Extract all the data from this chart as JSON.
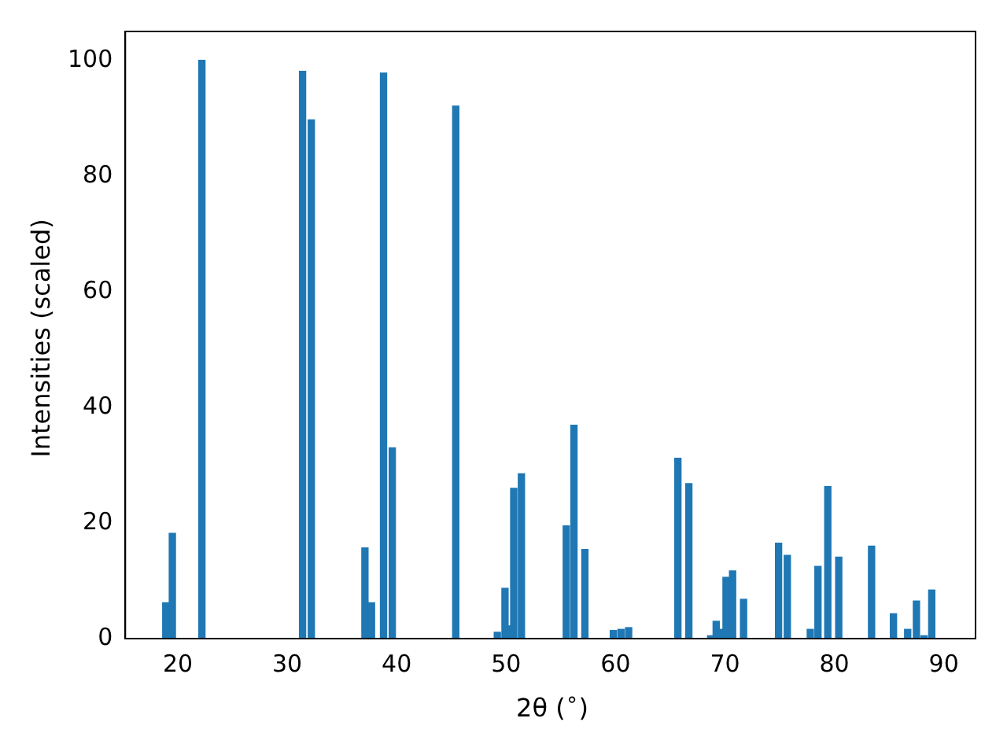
{
  "chart_data": {
    "type": "bar",
    "xlabel": "2θ ($^{∘}$)",
    "ylabel": "Intensities (scaled)",
    "x": [
      18.9,
      19.5,
      22.2,
      31.4,
      32.2,
      37.1,
      37.7,
      38.8,
      39.6,
      45.4,
      49.2,
      49.9,
      50.3,
      50.7,
      51.4,
      55.5,
      56.2,
      57.2,
      59.8,
      60.5,
      61.2,
      65.7,
      66.7,
      68.7,
      69.2,
      69.7,
      70.1,
      70.7,
      71.7,
      74.9,
      75.7,
      77.8,
      78.5,
      79.4,
      80.4,
      83.4,
      85.4,
      86.7,
      87.5,
      88.2,
      88.9
    ],
    "values": [
      6.2,
      18.2,
      100,
      98.1,
      89.7,
      15.7,
      6.2,
      97.8,
      33.0,
      92.1,
      1.1,
      8.7,
      2.2,
      26.0,
      28.5,
      19.5,
      36.9,
      15.4,
      1.4,
      1.6,
      1.9,
      31.2,
      26.8,
      0.5,
      3.0,
      1.6,
      10.6,
      11.7,
      6.8,
      16.5,
      14.4,
      1.6,
      12.5,
      26.3,
      14.1,
      16.0,
      4.3,
      1.6,
      6.5,
      0.5,
      8.4
    ],
    "color": "#1f77b4",
    "xlim": [
      15.2,
      92.9
    ],
    "xticks": [
      20,
      30,
      40,
      50,
      60,
      70,
      80,
      90
    ],
    "ylim": [
      0,
      105
    ],
    "yticks": [
      0,
      20,
      40,
      60,
      80,
      100
    ],
    "grid": false,
    "legend": false
  }
}
